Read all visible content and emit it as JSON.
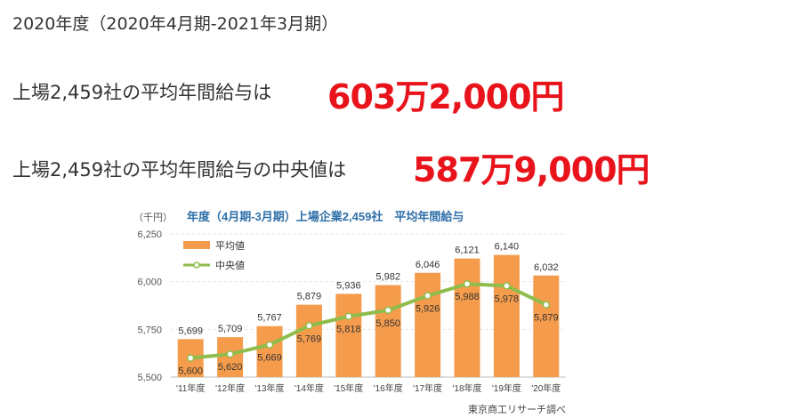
{
  "heading": "2020年度（2020年4月期-2021年3月期）",
  "stats": [
    {
      "label": "上場2,459社の平均年間給与は",
      "value": "603万2,000円"
    },
    {
      "label": "上場2,459社の平均年間給与の中央値は",
      "value": "587万9,000円"
    }
  ],
  "colors": {
    "bar": "#f59c4c",
    "line": "#8ebd4b",
    "highlight": "#e8131b",
    "chart_title": "#2e6fa7"
  },
  "chart_data": {
    "type": "bar",
    "title": "年度（4月期-3月期）上場企業2,459社　平均年間給与",
    "unit_label": "（千円）",
    "source": "東京商工リサーチ調べ",
    "categories": [
      "'11年度",
      "'12年度",
      "'13年度",
      "'14年度",
      "'15年度",
      "'16年度",
      "'17年度",
      "'18年度",
      "'19年度",
      "'20年度"
    ],
    "ylim": [
      5500,
      6250
    ],
    "yticks": [
      5500,
      5750,
      6000,
      6250
    ],
    "ytick_labels": [
      "5,500",
      "5,750",
      "6,000",
      "6,250"
    ],
    "grid": true,
    "legend_position": "top-left",
    "series": [
      {
        "name": "平均値",
        "kind": "bar",
        "values": [
          5699,
          5709,
          5767,
          5879,
          5936,
          5982,
          6046,
          6121,
          6140,
          6032
        ],
        "labels": [
          "5,699",
          "5,709",
          "5,767",
          "5,879",
          "5,936",
          "5,982",
          "6,046",
          "6,121",
          "6,140",
          "6,032"
        ]
      },
      {
        "name": "中央値",
        "kind": "line",
        "values": [
          5600,
          5620,
          5669,
          5769,
          5818,
          5850,
          5926,
          5988,
          5978,
          5879
        ],
        "labels": [
          "5,600",
          "5,620",
          "5,669",
          "5,769",
          "5,818",
          "5,850",
          "5,926",
          "5,988",
          "5,978",
          "5,879"
        ]
      }
    ]
  }
}
